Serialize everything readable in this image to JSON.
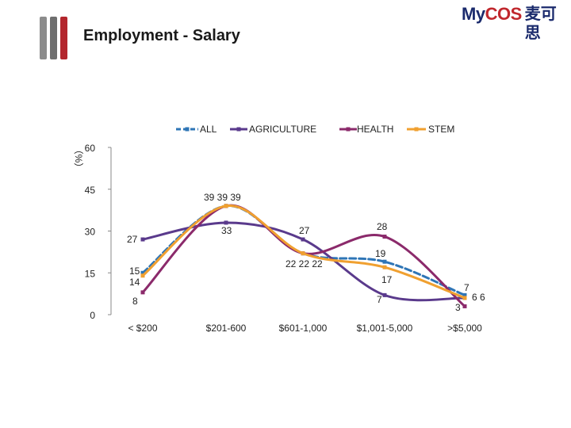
{
  "header": {
    "title": "Employment - Salary",
    "logo_text_left": "My",
    "logo_text_right": "COS",
    "logo_cn": "麦可思"
  },
  "chart_data": {
    "type": "line",
    "title": "",
    "ylabel": "（%）",
    "xlabel": "",
    "ylim": [
      0,
      60
    ],
    "yticks": [
      0,
      15,
      30,
      45,
      60
    ],
    "grid": false,
    "legend_position": "top",
    "categories": [
      "< $200",
      "$201-600",
      "$601-1,000",
      "$1,001-5,000",
      ">$5,000"
    ],
    "series": [
      {
        "name": "ALL",
        "color": "#2e75b6",
        "dash": true,
        "values": [
          15,
          39,
          22,
          19,
          7
        ]
      },
      {
        "name": "AGRICULTURE",
        "color": "#5a3a8c",
        "dash": false,
        "values": [
          27,
          33,
          27,
          7,
          6
        ]
      },
      {
        "name": "HEALTH",
        "color": "#8b2a6b",
        "dash": false,
        "values": [
          8,
          39,
          22,
          28,
          3
        ]
      },
      {
        "name": "STEM",
        "color": "#f0a030",
        "dash": false,
        "values": [
          14,
          39,
          22,
          17,
          6
        ]
      }
    ],
    "data_labels": [
      {
        "text": "27"
      },
      {
        "text": "15"
      },
      {
        "text": "14"
      },
      {
        "text": "8"
      },
      {
        "text": "39 39 39"
      },
      {
        "text": "33"
      },
      {
        "text": "27"
      },
      {
        "text": "22 22 22"
      },
      {
        "text": "28"
      },
      {
        "text": "19"
      },
      {
        "text": "17"
      },
      {
        "text": "7"
      },
      {
        "text": "7"
      },
      {
        "text": "6 6"
      },
      {
        "text": "3"
      }
    ]
  }
}
